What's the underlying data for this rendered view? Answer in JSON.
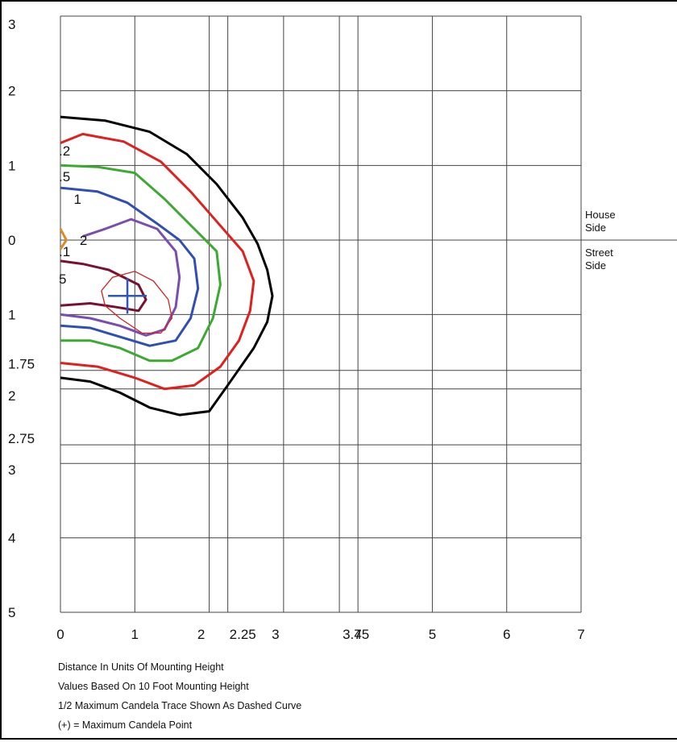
{
  "chart_data": {
    "type": "line",
    "title": "",
    "xlabel": "",
    "ylabel": "",
    "xlim": [
      0,
      7
    ],
    "ylim": [
      5,
      3
    ],
    "x_ticks": [
      "0",
      "1",
      "2",
      "2.25",
      "3",
      "3.75",
      "4",
      "5",
      "6",
      "7"
    ],
    "y_ticks_upper": [
      "3",
      "2",
      "1",
      "0"
    ],
    "y_ticks_lower": [
      "1",
      "1.75",
      "2",
      "2.75",
      "3",
      "4",
      "5"
    ],
    "side_labels": {
      "house": [
        "House",
        "Side"
      ],
      "street": [
        "Street",
        "Side"
      ]
    },
    "max_candela_point": {
      "x": 0.9,
      "y": -0.75
    },
    "series": [
      {
        "name": "",
        "label": "",
        "color": "#000000",
        "points": [
          [
            0,
            1.65
          ],
          [
            0.6,
            1.6
          ],
          [
            1.2,
            1.45
          ],
          [
            1.7,
            1.15
          ],
          [
            2.1,
            0.75
          ],
          [
            2.45,
            0.3
          ],
          [
            2.65,
            -0.05
          ],
          [
            2.78,
            -0.4
          ],
          [
            2.85,
            -0.75
          ],
          [
            2.78,
            -1.1
          ],
          [
            2.6,
            -1.45
          ],
          [
            2.25,
            -1.95
          ],
          [
            2.0,
            -2.3
          ],
          [
            1.6,
            -2.35
          ],
          [
            1.2,
            -2.25
          ],
          [
            0.8,
            -2.05
          ],
          [
            0.4,
            -1.9
          ],
          [
            0,
            -1.85
          ]
        ]
      },
      {
        "name": "",
        "label": ".2",
        "color": "#e0201c",
        "points": [
          [
            0,
            1.3
          ],
          [
            0.3,
            1.42
          ],
          [
            0.85,
            1.32
          ],
          [
            1.35,
            1.05
          ],
          [
            1.75,
            0.65
          ],
          [
            2.1,
            0.25
          ],
          [
            2.45,
            -0.15
          ],
          [
            2.6,
            -0.55
          ],
          [
            2.55,
            -0.95
          ],
          [
            2.4,
            -1.35
          ],
          [
            2.15,
            -1.7
          ],
          [
            1.8,
            -1.95
          ],
          [
            1.4,
            -2.0
          ],
          [
            1.0,
            -1.85
          ],
          [
            0.5,
            -1.7
          ],
          [
            0,
            -1.65
          ]
        ]
      },
      {
        "name": "",
        "label": ".5",
        "color": "#3aab30",
        "points": [
          [
            0,
            1.0
          ],
          [
            0.5,
            0.98
          ],
          [
            1.0,
            0.9
          ],
          [
            1.4,
            0.55
          ],
          [
            1.75,
            0.2
          ],
          [
            2.1,
            -0.15
          ],
          [
            2.15,
            -0.6
          ],
          [
            2.05,
            -1.05
          ],
          [
            1.85,
            -1.45
          ],
          [
            1.5,
            -1.62
          ],
          [
            1.2,
            -1.62
          ],
          [
            0.8,
            -1.45
          ],
          [
            0.4,
            -1.35
          ],
          [
            0,
            -1.35
          ]
        ]
      },
      {
        "name": "",
        "label": "1",
        "color": "#2f4fb5",
        "points": [
          [
            0,
            0.7
          ],
          [
            0.5,
            0.65
          ],
          [
            0.9,
            0.5
          ],
          [
            1.3,
            0.22
          ],
          [
            1.6,
            0.0
          ],
          [
            1.8,
            -0.25
          ],
          [
            1.85,
            -0.65
          ],
          [
            1.75,
            -1.05
          ],
          [
            1.55,
            -1.35
          ],
          [
            1.2,
            -1.42
          ],
          [
            0.8,
            -1.3
          ],
          [
            0.4,
            -1.18
          ],
          [
            0,
            -1.15
          ]
        ]
      },
      {
        "name": "",
        "label": "2",
        "color": "#7a4db0",
        "points": [
          [
            0.3,
            0.05
          ],
          [
            0.6,
            0.15
          ],
          [
            0.95,
            0.28
          ],
          [
            1.3,
            0.15
          ],
          [
            1.55,
            -0.15
          ],
          [
            1.6,
            -0.5
          ],
          [
            1.55,
            -0.9
          ],
          [
            1.4,
            -1.2
          ],
          [
            1.15,
            -1.28
          ],
          [
            0.8,
            -1.15
          ],
          [
            0.4,
            -1.05
          ],
          [
            0,
            -1.0
          ]
        ]
      },
      {
        "name": "",
        "label": "5",
        "color": "#7a1030",
        "points": [
          [
            0,
            -0.28
          ],
          [
            0.3,
            -0.32
          ],
          [
            0.65,
            -0.4
          ],
          [
            1.05,
            -0.6
          ],
          [
            1.15,
            -0.8
          ],
          [
            1.05,
            -0.95
          ],
          [
            0.75,
            -0.9
          ],
          [
            0.4,
            -0.85
          ],
          [
            0,
            -0.88
          ]
        ]
      },
      {
        "name": "",
        "label": ".1",
        "color": "#e08a20",
        "points": [
          [
            0,
            0.15
          ],
          [
            0.08,
            0.0
          ],
          [
            0,
            -0.12
          ]
        ]
      }
    ],
    "half_max_trace": {
      "color": "#d42020",
      "points": [
        [
          0.55,
          -0.68
        ],
        [
          0.7,
          -0.5
        ],
        [
          1.0,
          -0.42
        ],
        [
          1.25,
          -0.55
        ],
        [
          1.45,
          -0.8
        ],
        [
          1.5,
          -1.05
        ],
        [
          1.35,
          -1.25
        ],
        [
          1.1,
          -1.25
        ],
        [
          0.8,
          -1.05
        ],
        [
          0.6,
          -0.88
        ],
        [
          0.55,
          -0.68
        ]
      ]
    }
  },
  "notes": [
    "Distance In Units Of Mounting Height",
    "Values Based On 10 Foot Mounting Height",
    "1/2 Maximum Candela Trace Shown As Dashed Curve",
    "(+) = Maximum Candela Point"
  ]
}
